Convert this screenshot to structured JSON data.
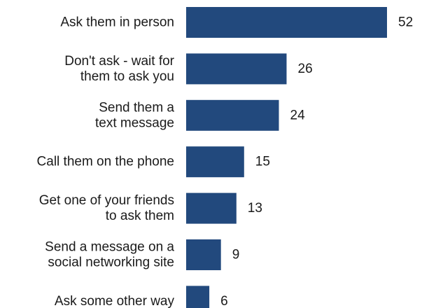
{
  "chart_data": {
    "type": "bar",
    "orientation": "horizontal",
    "title": "",
    "xlabel": "",
    "ylabel": "",
    "categories": [
      [
        "Ask them in person"
      ],
      [
        "Don't ask - wait for",
        "them to ask you"
      ],
      [
        "Send them a",
        "text message"
      ],
      [
        "Call them on the phone"
      ],
      [
        "Get one of your friends",
        "to ask them"
      ],
      [
        "Send a message on a",
        "social networking site"
      ],
      [
        "Ask some other way"
      ]
    ],
    "values": [
      52,
      26,
      24,
      15,
      13,
      9,
      6
    ],
    "value_labels": [
      "52",
      "26",
      "24",
      "15",
      "13",
      "9",
      "6"
    ],
    "xlim": [
      0,
      52
    ],
    "grid": false,
    "legend": "none",
    "bar_color": "#22497d"
  }
}
